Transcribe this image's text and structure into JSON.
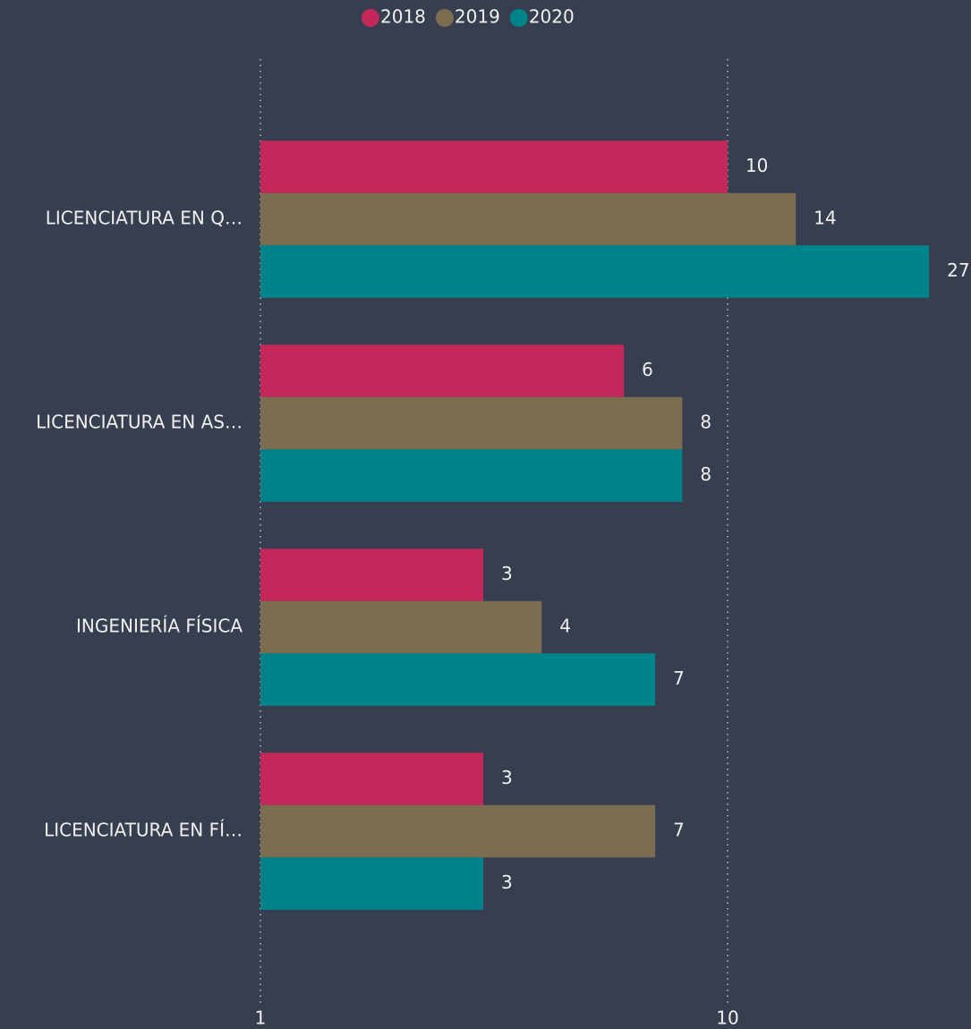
{
  "chart_data": {
    "type": "bar",
    "orientation": "horizontal",
    "categories": [
      "LICENCIATURA EN Q…",
      "LICENCIATURA EN AS…",
      "INGENIERÍA FÍSICA",
      "LICENCIATURA EN FÍ…"
    ],
    "series": [
      {
        "name": "2018",
        "color": "#c4285b",
        "values": [
          10,
          6,
          3,
          3
        ]
      },
      {
        "name": "2019",
        "color": "#7b6d51",
        "values": [
          14,
          8,
          4,
          7
        ]
      },
      {
        "name": "2020",
        "color": "#00848b",
        "values": [
          27,
          8,
          7,
          3
        ]
      }
    ],
    "xlim": [
      1,
      30
    ],
    "xticks": [
      1,
      10
    ],
    "log_scale": true,
    "grid": true,
    "legend": "top"
  }
}
